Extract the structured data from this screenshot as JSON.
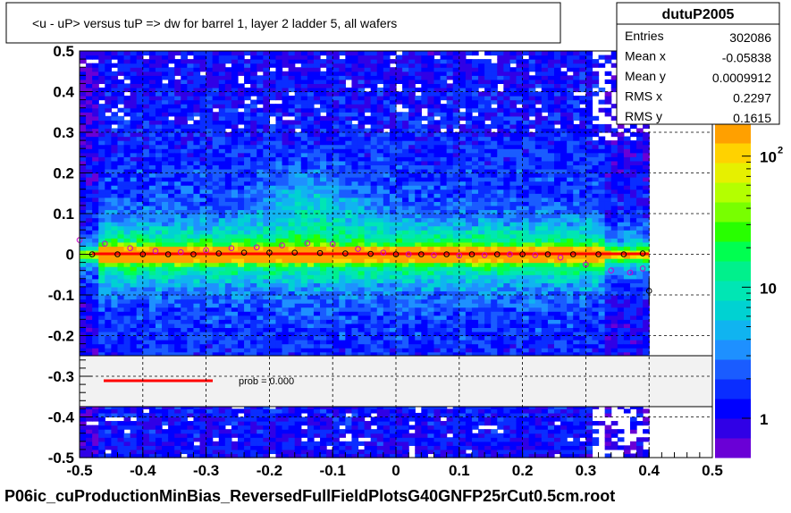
{
  "title": "<u - uP>       versus  tuP =>  dw for barrel 1, layer 2 ladder 5, all wafers",
  "footer": "P06ic_cuProductionMinBias_ReversedFullFieldPlotsG40GNFP25rCut0.5cm.root",
  "stats": {
    "name": "dutuP2005",
    "rows": [
      {
        "label": "Entries",
        "value": "302086"
      },
      {
        "label": "Mean x",
        "value": "-0.05838"
      },
      {
        "label": "Mean y",
        "value": "0.0009912"
      },
      {
        "label": "RMS x",
        "value": "0.2297"
      },
      {
        "label": "RMS y",
        "value": "0.1615"
      }
    ]
  },
  "fit_legend": {
    "label": "prob = 0.000",
    "line_color": "#ff0000"
  },
  "colors": {
    "profile_a": "#000000",
    "profile_b": "#cc00cc",
    "fit_line": "#ff0000",
    "legend_bg": "#f2f2f2"
  },
  "chart_data": {
    "type": "heatmap",
    "xlim": [
      -0.5,
      0.5
    ],
    "ylim": [
      -0.5,
      0.5
    ],
    "x_ticks": [
      "-0.5",
      "-0.4",
      "-0.3",
      "-0.2",
      "-0.1",
      "0",
      "0.1",
      "0.2",
      "0.3",
      "0.4",
      "0.5"
    ],
    "y_ticks": [
      "-0.5",
      "-0.4",
      "-0.3",
      "-0.2",
      "-0.1",
      "0",
      "0.1",
      "0.2",
      "0.3",
      "0.4",
      "0.5"
    ],
    "grid": true,
    "z_scale": "log",
    "colorbar_ticks": [
      "1",
      "10",
      "10^2"
    ],
    "fit": {
      "slope": 0.0,
      "intercept": 0.001
    },
    "profile_mean": {
      "x": [
        -0.48,
        -0.44,
        -0.4,
        -0.36,
        -0.32,
        -0.28,
        -0.24,
        -0.2,
        -0.16,
        -0.12,
        -0.08,
        -0.04,
        0.0,
        0.04,
        0.08,
        0.12,
        0.16,
        0.2,
        0.24,
        0.28,
        0.32,
        0.36,
        0.39,
        0.4
      ],
      "y": [
        0.0,
        0.0,
        0.0,
        0.0,
        0.0,
        0.002,
        0.004,
        0.004,
        0.004,
        0.003,
        0.002,
        0.001,
        0.0,
        0.0,
        0.0,
        0.0,
        0.0,
        0.0,
        0.0,
        0.0,
        0.0,
        0.0,
        0.002,
        -0.09
      ]
    },
    "profile_fit": {
      "x": [
        -0.5,
        -0.46,
        -0.42,
        -0.38,
        -0.34,
        -0.3,
        -0.26,
        -0.22,
        -0.18,
        -0.14,
        -0.1,
        -0.06,
        -0.02,
        0.02,
        0.06,
        0.1,
        0.14,
        0.18,
        0.22,
        0.26,
        0.3,
        0.34,
        0.37,
        0.39
      ],
      "y": [
        0.035,
        0.026,
        0.015,
        0.008,
        0.005,
        0.01,
        0.015,
        0.017,
        0.022,
        0.027,
        0.025,
        0.013,
        0.004,
        0.0,
        -0.002,
        -0.003,
        -0.002,
        0.0,
        -0.002,
        -0.008,
        -0.025,
        -0.04,
        -0.045,
        -0.035
      ]
    }
  }
}
